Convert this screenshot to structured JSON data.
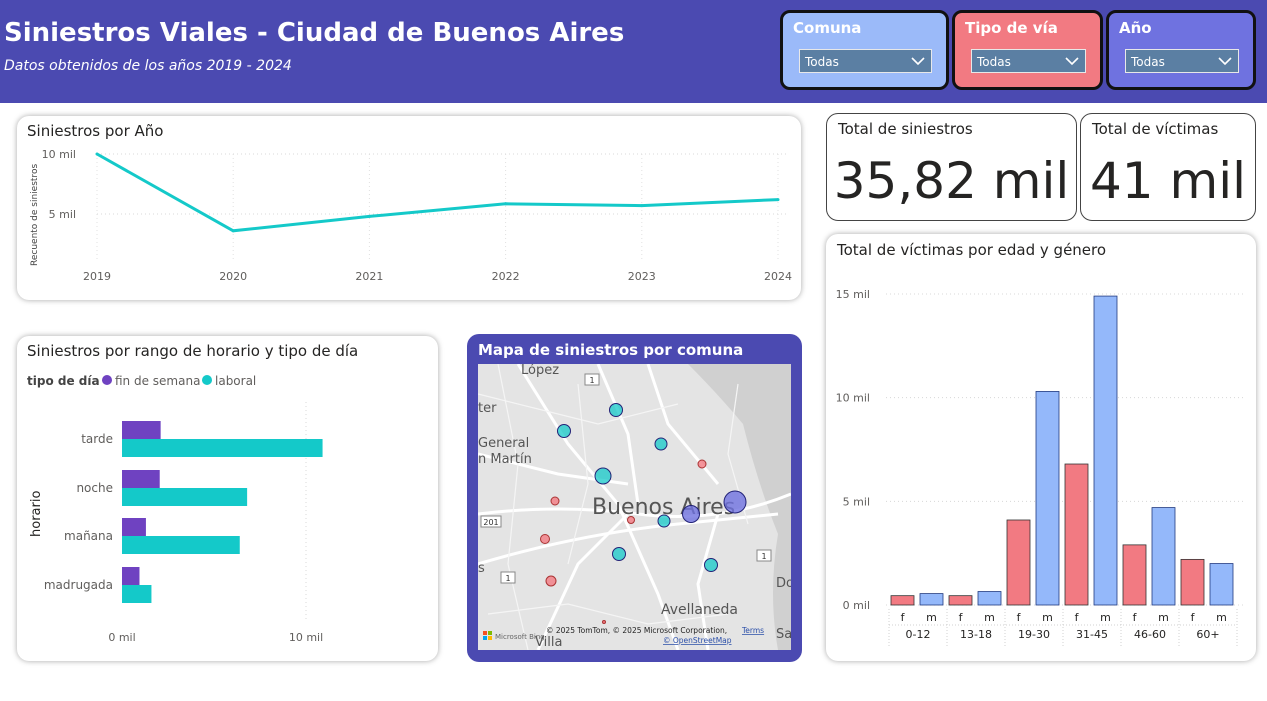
{
  "header": {
    "title": "Siniestros Viales - Ciudad de Buenos Aires",
    "subtitle": "Datos obtenidos de los años 2019 - 2024"
  },
  "slicers": [
    {
      "label": "Comuna",
      "value": "Todas",
      "color": "#9bbaf9"
    },
    {
      "label": "Tipo de vía",
      "value": "Todas",
      "color": "#f27a82"
    },
    {
      "label": "Año",
      "value": "Todas",
      "color": "#6f72e0"
    }
  ],
  "kpis": {
    "total_siniestros": {
      "label": "Total de siniestros",
      "value": "35,82 mil"
    },
    "total_victimas": {
      "label": "Total de víctimas",
      "value": "41 mil"
    }
  },
  "colors": {
    "header": "#4b4ab1",
    "teal": "#14c9c9",
    "purple": "#6f42c1",
    "female": "#f27a82",
    "male": "#94b8fa"
  },
  "map": {
    "title": "Mapa de siniestros por comuna",
    "labels": {
      "city": "Buenos Aires",
      "lopez": "López",
      "general": "General",
      "san_martin": "n Martín",
      "avellaneda": "Avellaneda",
      "ter": "ter",
      "do": "Do",
      "sa": "Sa",
      "s": "s",
      "villa": "Villa",
      "route1": "1",
      "route201": "201"
    },
    "attribution": "© 2025 TomTom, © 2025 Microsoft Corporation,",
    "terms": "Terms",
    "osm": "© OpenStreetMap",
    "bing": "Microsoft Bing"
  },
  "chart_data": [
    {
      "type": "line",
      "title": "Siniestros por Año",
      "ylabel": "Recuento de siniestros",
      "x": [
        "2019",
        "2020",
        "2021",
        "2022",
        "2023",
        "2024"
      ],
      "y_ticks": [
        "10 mil",
        "5 mil"
      ],
      "ylim": [
        2500,
        10000
      ],
      "series": [
        {
          "values": [
            10000,
            3600,
            4800,
            5850,
            5700,
            6200
          ]
        }
      ]
    },
    {
      "type": "bar",
      "orientation": "horizontal",
      "title": "Siniestros por rango de horario y tipo de día",
      "legend_title": "tipo de día",
      "ylabel": "horario",
      "categories": [
        "tarde",
        "noche",
        "mañana",
        "madrugada"
      ],
      "x_ticks": [
        "0 mil",
        "10 mil"
      ],
      "xlim": [
        0,
        12500
      ],
      "series": [
        {
          "name": "fin de semana",
          "values": [
            2100,
            2050,
            1300,
            950
          ]
        },
        {
          "name": "laboral",
          "values": [
            10900,
            6800,
            6400,
            1600
          ]
        }
      ]
    },
    {
      "type": "bar",
      "title": "Total de víctimas por edad y género",
      "groups": [
        "0-12",
        "13-18",
        "19-30",
        "31-45",
        "46-60",
        "60+"
      ],
      "sub_labels": [
        "f",
        "m"
      ],
      "y_ticks": [
        "15 mil",
        "10 mil",
        "5 mil",
        "0 mil"
      ],
      "ylim": [
        0,
        15000
      ],
      "series": [
        {
          "name": "f",
          "values": [
            450,
            450,
            4100,
            6800,
            2900,
            2200
          ]
        },
        {
          "name": "m",
          "values": [
            550,
            650,
            10300,
            14900,
            4700,
            2000
          ]
        }
      ]
    }
  ]
}
